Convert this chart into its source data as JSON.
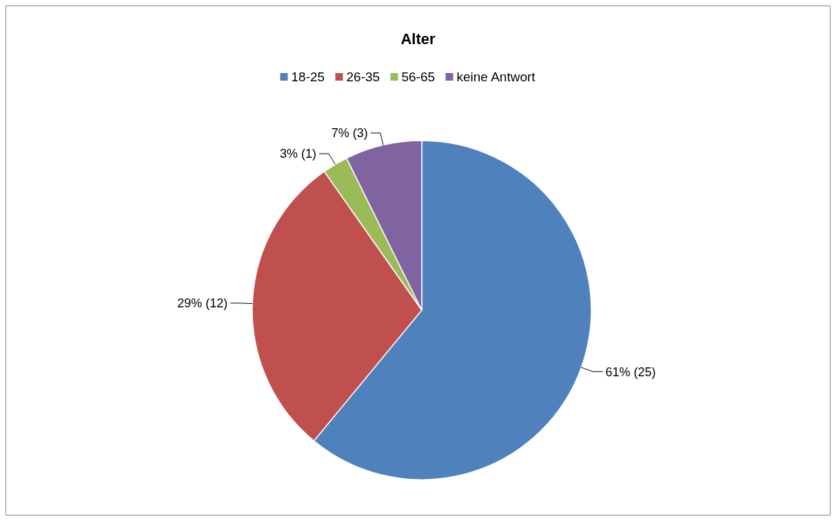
{
  "chart_data": {
    "type": "pie",
    "title": "Alter",
    "categories": [
      "18-25",
      "26-35",
      "56-65",
      "keine Antwort"
    ],
    "values": [
      25,
      12,
      1,
      3
    ],
    "colors": [
      "#4f81bd",
      "#c0504d",
      "#9bbb59",
      "#8064a2"
    ],
    "value_labels": [
      "61% (25)",
      "29% (12)",
      "3% (1)",
      "7% (3)"
    ],
    "legend": "top"
  }
}
